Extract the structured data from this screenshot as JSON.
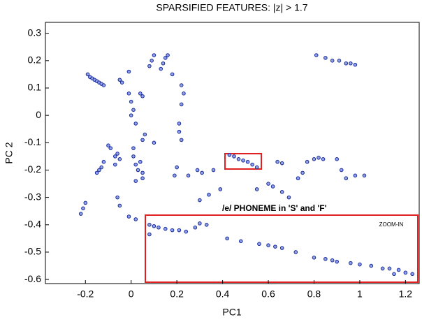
{
  "chart_data": {
    "type": "scatter",
    "title": "SPARSIFIED FEATURES: |z| > 1.7",
    "x_label": "PC1",
    "y_label": "PC 2",
    "annotations": [
      "/e/ PHONEME in 'S' and 'F'",
      "ZOOM-IN"
    ],
    "color": "#1a2a9a",
    "x": [
      -0.19,
      -0.18,
      -0.17,
      -0.16,
      -0.15,
      -0.14,
      -0.13,
      -0.12,
      -0.05,
      -0.04,
      -0.01,
      0,
      0.01,
      0,
      0.02,
      0.05,
      0.04,
      0.09,
      0.1,
      0.08,
      0.14,
      0.15,
      0.16,
      0.13,
      0.18,
      0.22,
      0.23,
      0.22,
      0.21,
      0.21,
      0.06,
      0.05,
      -0.01,
      -0.1,
      -0.09,
      -0.07,
      -0.12,
      -0.13,
      -0.14,
      -0.15,
      -0.06,
      -0.05,
      -0.07,
      0.01,
      0.01,
      0.02,
      0.03,
      0.04,
      0.05,
      0.05,
      0.02,
      -0.2,
      -0.21,
      -0.22,
      -0.06,
      -0.05,
      -0.01,
      0.02,
      0.1,
      0.22,
      0.29,
      0.31,
      0.36,
      0.3,
      0.34,
      0.39,
      0.2,
      0.19,
      0.25,
      0.43,
      0.45,
      0.47,
      0.49,
      0.51,
      0.53,
      0.55,
      0.64,
      0.66,
      0.77,
      0.8,
      0.82,
      0.84,
      0.9,
      0.92,
      0.94,
      0.98,
      1.02,
      0.75,
      0.73,
      0.6,
      0.62,
      0.66,
      0.69,
      0.55,
      0.81,
      0.85,
      0.88,
      0.91,
      0.94,
      0.96,
      0.98,
      0.08,
      0.1,
      0.12,
      0.15,
      0.18,
      0.21,
      0.24,
      0.08,
      0.28,
      0.3,
      0.33,
      0.42,
      0.48,
      0.56,
      0.6,
      0.63,
      0.66,
      0.72,
      0.8,
      0.85,
      0.88,
      0.9,
      0.96,
      1.0,
      1.05,
      1.1,
      1.13,
      1.17,
      1.2,
      1.23,
      1.15
    ],
    "values": [
      0.15,
      0.14,
      0.135,
      0.13,
      0.125,
      0.12,
      0.115,
      0.11,
      0.13,
      0.12,
      0.08,
      0.05,
      0.02,
      0,
      -0.03,
      0.07,
      0.08,
      0.2,
      0.22,
      0.18,
      0.19,
      0.21,
      0.22,
      0.17,
      0.15,
      0.11,
      0.08,
      0.04,
      -0.03,
      -0.06,
      -0.07,
      -0.09,
      0.16,
      -0.11,
      -0.12,
      -0.15,
      -0.17,
      -0.19,
      -0.2,
      -0.21,
      -0.14,
      -0.16,
      -0.18,
      -0.12,
      -0.15,
      -0.18,
      -0.2,
      -0.17,
      -0.21,
      -0.23,
      -0.24,
      -0.32,
      -0.34,
      -0.36,
      -0.3,
      -0.33,
      -0.37,
      -0.38,
      -0.1,
      -0.09,
      -0.2,
      -0.21,
      -0.2,
      -0.31,
      -0.29,
      -0.27,
      -0.19,
      -0.22,
      -0.22,
      -0.145,
      -0.15,
      -0.16,
      -0.165,
      -0.17,
      -0.18,
      -0.19,
      -0.17,
      -0.175,
      -0.17,
      -0.16,
      -0.155,
      -0.16,
      -0.16,
      -0.2,
      -0.23,
      -0.22,
      -0.22,
      -0.21,
      -0.23,
      -0.25,
      -0.26,
      -0.28,
      -0.3,
      -0.27,
      0.22,
      0.21,
      0.2,
      0.2,
      0.19,
      0.19,
      0.185,
      -0.4,
      -0.405,
      -0.41,
      -0.415,
      -0.42,
      -0.42,
      -0.425,
      -0.435,
      -0.41,
      -0.395,
      -0.4,
      -0.45,
      -0.46,
      -0.47,
      -0.475,
      -0.48,
      -0.485,
      -0.5,
      -0.52,
      -0.525,
      -0.53,
      -0.535,
      -0.54,
      -0.545,
      -0.55,
      -0.56,
      -0.56,
      -0.565,
      -0.575,
      -0.58,
      -0.58
    ],
    "xlim": [
      -0.375,
      1.26
    ],
    "ylim": [
      -0.615,
      0.34
    ],
    "xticks": [
      -0.2,
      0,
      0.2,
      0.4,
      0.6,
      0.8,
      1,
      1.2
    ],
    "yticks": [
      0.3,
      0.2,
      0.1,
      0,
      -0.1,
      -0.2,
      -0.3,
      -0.4,
      -0.5,
      -0.6
    ],
    "grid": false
  }
}
